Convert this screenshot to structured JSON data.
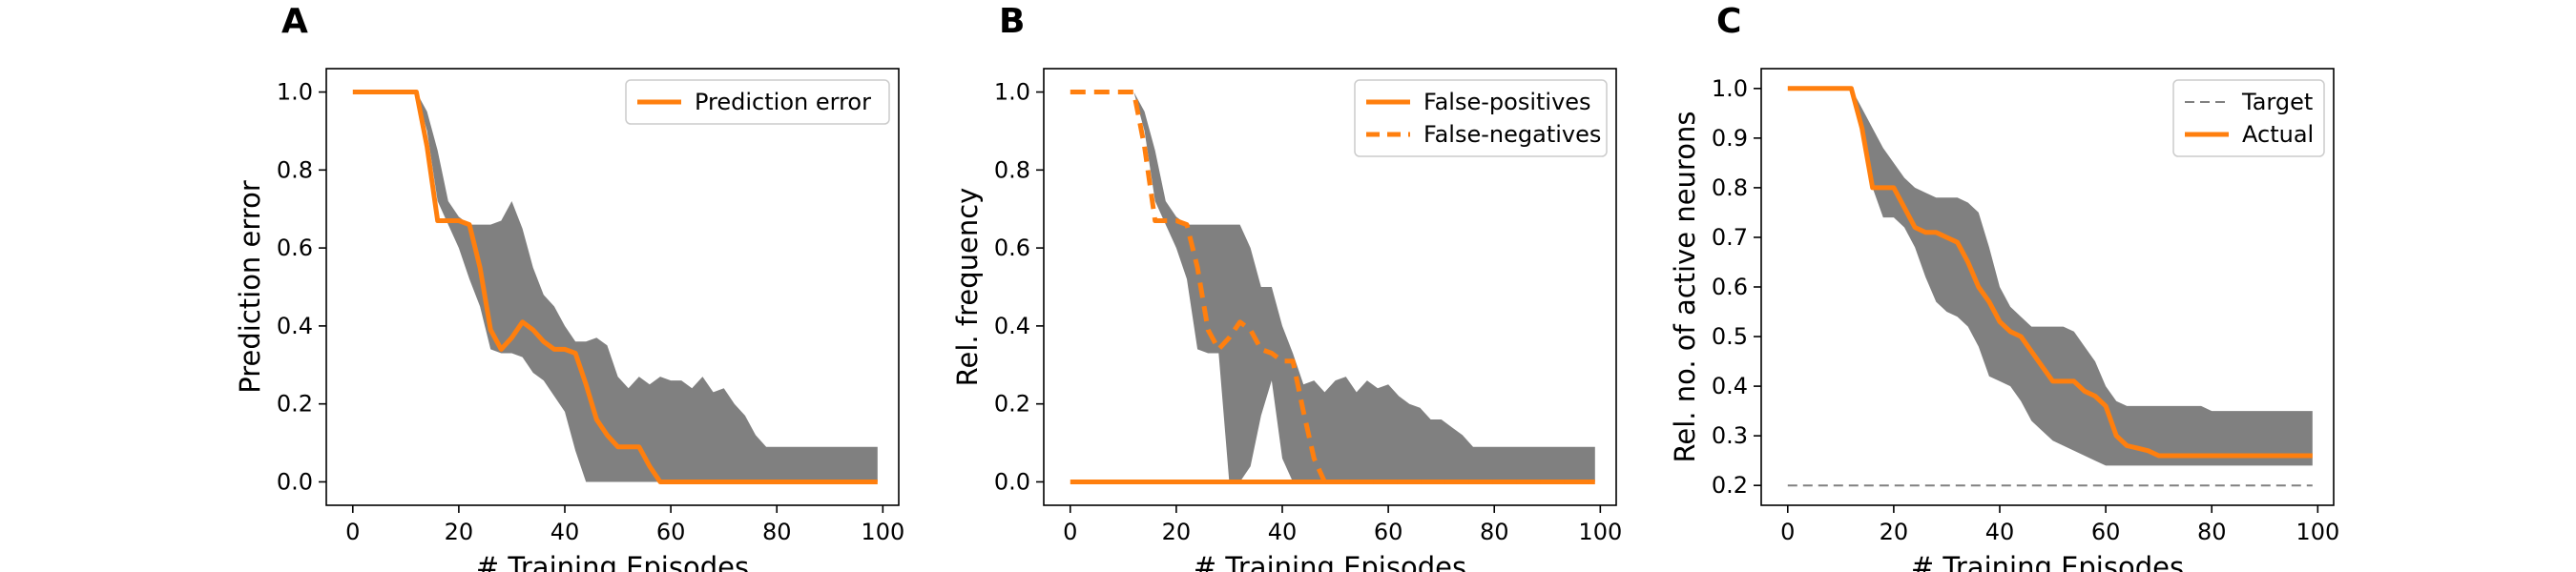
{
  "chart_data": [
    {
      "type": "line",
      "panel_label": "A",
      "xlabel": "# Training Episodes",
      "ylabel": "Prediction error",
      "xlim": [
        -5,
        103
      ],
      "ylim": [
        -0.06,
        1.06
      ],
      "xticks": [
        0,
        20,
        40,
        60,
        80,
        100
      ],
      "yticks": [
        0.0,
        0.2,
        0.4,
        0.6,
        0.8,
        1.0
      ],
      "ytick_labels": [
        "0.0",
        "0.2",
        "0.4",
        "0.6",
        "0.8",
        "1.0"
      ],
      "legend_position": "upper right",
      "grid": false,
      "band": {
        "color": "#808080",
        "x": [
          12,
          14,
          16,
          18,
          20,
          22,
          24,
          26,
          28,
          30,
          32,
          34,
          36,
          38,
          40,
          42,
          44,
          46,
          48,
          50,
          52,
          54,
          56,
          58,
          60,
          62,
          64,
          66,
          68,
          70,
          72,
          74,
          76,
          78,
          80,
          85,
          90,
          95,
          99
        ],
        "upper": [
          1.0,
          0.95,
          0.85,
          0.72,
          0.68,
          0.66,
          0.66,
          0.66,
          0.67,
          0.72,
          0.65,
          0.55,
          0.48,
          0.45,
          0.4,
          0.36,
          0.36,
          0.37,
          0.35,
          0.27,
          0.24,
          0.27,
          0.25,
          0.27,
          0.26,
          0.26,
          0.24,
          0.27,
          0.23,
          0.24,
          0.2,
          0.17,
          0.12,
          0.09,
          0.09,
          0.09,
          0.09,
          0.09,
          0.09
        ],
        "lower": [
          1.0,
          0.9,
          0.72,
          0.66,
          0.6,
          0.52,
          0.45,
          0.34,
          0.33,
          0.33,
          0.32,
          0.28,
          0.26,
          0.22,
          0.18,
          0.08,
          0.0,
          0.0,
          0.0,
          0.0,
          0.0,
          0.0,
          0.0,
          0.0,
          0.0,
          0.0,
          0.0,
          0.0,
          0.0,
          0.0,
          0.0,
          0.0,
          0.0,
          0.0,
          0.0,
          0.0,
          0.0,
          0.0,
          0.0
        ]
      },
      "series": [
        {
          "name": "Prediction error",
          "color": "#ff7f0e",
          "style": "solid",
          "x": [
            0,
            12,
            14,
            16,
            20,
            22,
            24,
            26,
            28,
            30,
            32,
            34,
            36,
            38,
            40,
            42,
            44,
            46,
            48,
            50,
            52,
            54,
            56,
            58,
            99
          ],
          "y": [
            1.0,
            1.0,
            0.86,
            0.67,
            0.67,
            0.66,
            0.55,
            0.39,
            0.34,
            0.37,
            0.41,
            0.39,
            0.36,
            0.34,
            0.34,
            0.33,
            0.25,
            0.16,
            0.12,
            0.09,
            0.09,
            0.09,
            0.04,
            0.0,
            0.0
          ]
        }
      ]
    },
    {
      "type": "line",
      "panel_label": "B",
      "xlabel": "# Training Episodes",
      "ylabel": "Rel. frequency",
      "xlim": [
        -5,
        103
      ],
      "ylim": [
        -0.06,
        1.06
      ],
      "xticks": [
        0,
        20,
        40,
        60,
        80,
        100
      ],
      "yticks": [
        0.0,
        0.2,
        0.4,
        0.6,
        0.8,
        1.0
      ],
      "ytick_labels": [
        "0.0",
        "0.2",
        "0.4",
        "0.6",
        "0.8",
        "1.0"
      ],
      "legend_position": "upper right",
      "grid": false,
      "band": {
        "color": "#808080",
        "x": [
          12,
          14,
          16,
          18,
          20,
          22,
          24,
          26,
          28,
          30,
          32,
          34,
          36,
          38,
          40,
          42,
          44,
          46,
          48,
          50,
          52,
          54,
          56,
          58,
          60,
          62,
          64,
          66,
          68,
          70,
          72,
          74,
          76,
          78,
          80,
          85,
          90,
          95,
          99
        ],
        "upper": [
          1.0,
          0.95,
          0.85,
          0.72,
          0.68,
          0.66,
          0.66,
          0.66,
          0.66,
          0.66,
          0.66,
          0.6,
          0.5,
          0.5,
          0.4,
          0.33,
          0.25,
          0.26,
          0.23,
          0.26,
          0.27,
          0.23,
          0.26,
          0.24,
          0.25,
          0.22,
          0.2,
          0.19,
          0.16,
          0.16,
          0.14,
          0.12,
          0.09,
          0.09,
          0.09,
          0.09,
          0.09,
          0.09,
          0.09
        ],
        "lower": [
          1.0,
          0.9,
          0.72,
          0.66,
          0.6,
          0.52,
          0.34,
          0.33,
          0.33,
          0.0,
          0.0,
          0.04,
          0.17,
          0.26,
          0.06,
          0.0,
          0.0,
          0.0,
          0.0,
          0.0,
          0.0,
          0.0,
          0.0,
          0.0,
          0.0,
          0.0,
          0.0,
          0.0,
          0.0,
          0.0,
          0.0,
          0.0,
          0.0,
          0.0,
          0.0,
          0.0,
          0.0,
          0.0,
          0.0
        ]
      },
      "series": [
        {
          "name": "False-positives",
          "color": "#ff7f0e",
          "style": "solid",
          "x": [
            0,
            99
          ],
          "y": [
            0.0,
            0.0
          ]
        },
        {
          "name": "False-negatives",
          "color": "#ff7f0e",
          "style": "dashed",
          "x": [
            0,
            12,
            14,
            16,
            20,
            22,
            24,
            26,
            28,
            30,
            32,
            34,
            36,
            38,
            40,
            42,
            44,
            46,
            48,
            99
          ],
          "y": [
            1.0,
            1.0,
            0.86,
            0.67,
            0.67,
            0.66,
            0.55,
            0.39,
            0.34,
            0.37,
            0.41,
            0.39,
            0.34,
            0.33,
            0.31,
            0.31,
            0.18,
            0.06,
            0.0,
            0.0
          ]
        }
      ]
    },
    {
      "type": "line",
      "panel_label": "C",
      "xlabel": "# Training Episodes",
      "ylabel": "Rel. no. of active neurons",
      "xlim": [
        -5,
        103
      ],
      "ylim": [
        0.16,
        1.04
      ],
      "xticks": [
        0,
        20,
        40,
        60,
        80,
        100
      ],
      "yticks": [
        0.2,
        0.3,
        0.4,
        0.5,
        0.6,
        0.7,
        0.8,
        0.9,
        1.0
      ],
      "ytick_labels": [
        "0.2",
        "0.3",
        "0.4",
        "0.5",
        "0.6",
        "0.7",
        "0.8",
        "0.9",
        "1.0"
      ],
      "legend_position": "upper right",
      "grid": false,
      "band": {
        "color": "#808080",
        "x": [
          12,
          14,
          16,
          18,
          20,
          22,
          24,
          26,
          28,
          30,
          32,
          34,
          36,
          38,
          40,
          42,
          44,
          46,
          48,
          50,
          52,
          54,
          56,
          58,
          60,
          62,
          64,
          66,
          68,
          70,
          72,
          74,
          76,
          78,
          80,
          85,
          90,
          95,
          99
        ],
        "upper": [
          1.0,
          0.96,
          0.92,
          0.88,
          0.85,
          0.82,
          0.8,
          0.79,
          0.78,
          0.78,
          0.78,
          0.77,
          0.75,
          0.68,
          0.6,
          0.56,
          0.54,
          0.52,
          0.52,
          0.52,
          0.52,
          0.51,
          0.48,
          0.45,
          0.4,
          0.37,
          0.36,
          0.36,
          0.36,
          0.36,
          0.36,
          0.36,
          0.36,
          0.36,
          0.35,
          0.35,
          0.35,
          0.35,
          0.35
        ],
        "lower": [
          1.0,
          0.9,
          0.8,
          0.74,
          0.74,
          0.72,
          0.68,
          0.62,
          0.57,
          0.55,
          0.54,
          0.52,
          0.48,
          0.42,
          0.41,
          0.4,
          0.37,
          0.33,
          0.31,
          0.29,
          0.28,
          0.27,
          0.26,
          0.25,
          0.24,
          0.24,
          0.24,
          0.24,
          0.24,
          0.24,
          0.24,
          0.24,
          0.24,
          0.24,
          0.24,
          0.24,
          0.24,
          0.24,
          0.24
        ]
      },
      "series": [
        {
          "name": "Target",
          "color": "#808080",
          "style": "dashed",
          "x": [
            0,
            99
          ],
          "y": [
            0.2,
            0.2
          ]
        },
        {
          "name": "Actual",
          "color": "#ff7f0e",
          "style": "solid",
          "x": [
            0,
            12,
            14,
            16,
            18,
            20,
            22,
            24,
            26,
            28,
            30,
            32,
            34,
            36,
            38,
            40,
            42,
            44,
            46,
            48,
            50,
            52,
            54,
            56,
            58,
            60,
            62,
            64,
            66,
            68,
            70,
            72,
            74,
            76,
            78,
            80,
            99
          ],
          "y": [
            1.0,
            1.0,
            0.92,
            0.8,
            0.8,
            0.8,
            0.76,
            0.72,
            0.71,
            0.71,
            0.7,
            0.69,
            0.65,
            0.6,
            0.57,
            0.53,
            0.51,
            0.5,
            0.47,
            0.44,
            0.41,
            0.41,
            0.41,
            0.39,
            0.38,
            0.36,
            0.3,
            0.28,
            0.275,
            0.27,
            0.26,
            0.26,
            0.26,
            0.26,
            0.26,
            0.26,
            0.26
          ]
        }
      ]
    }
  ]
}
